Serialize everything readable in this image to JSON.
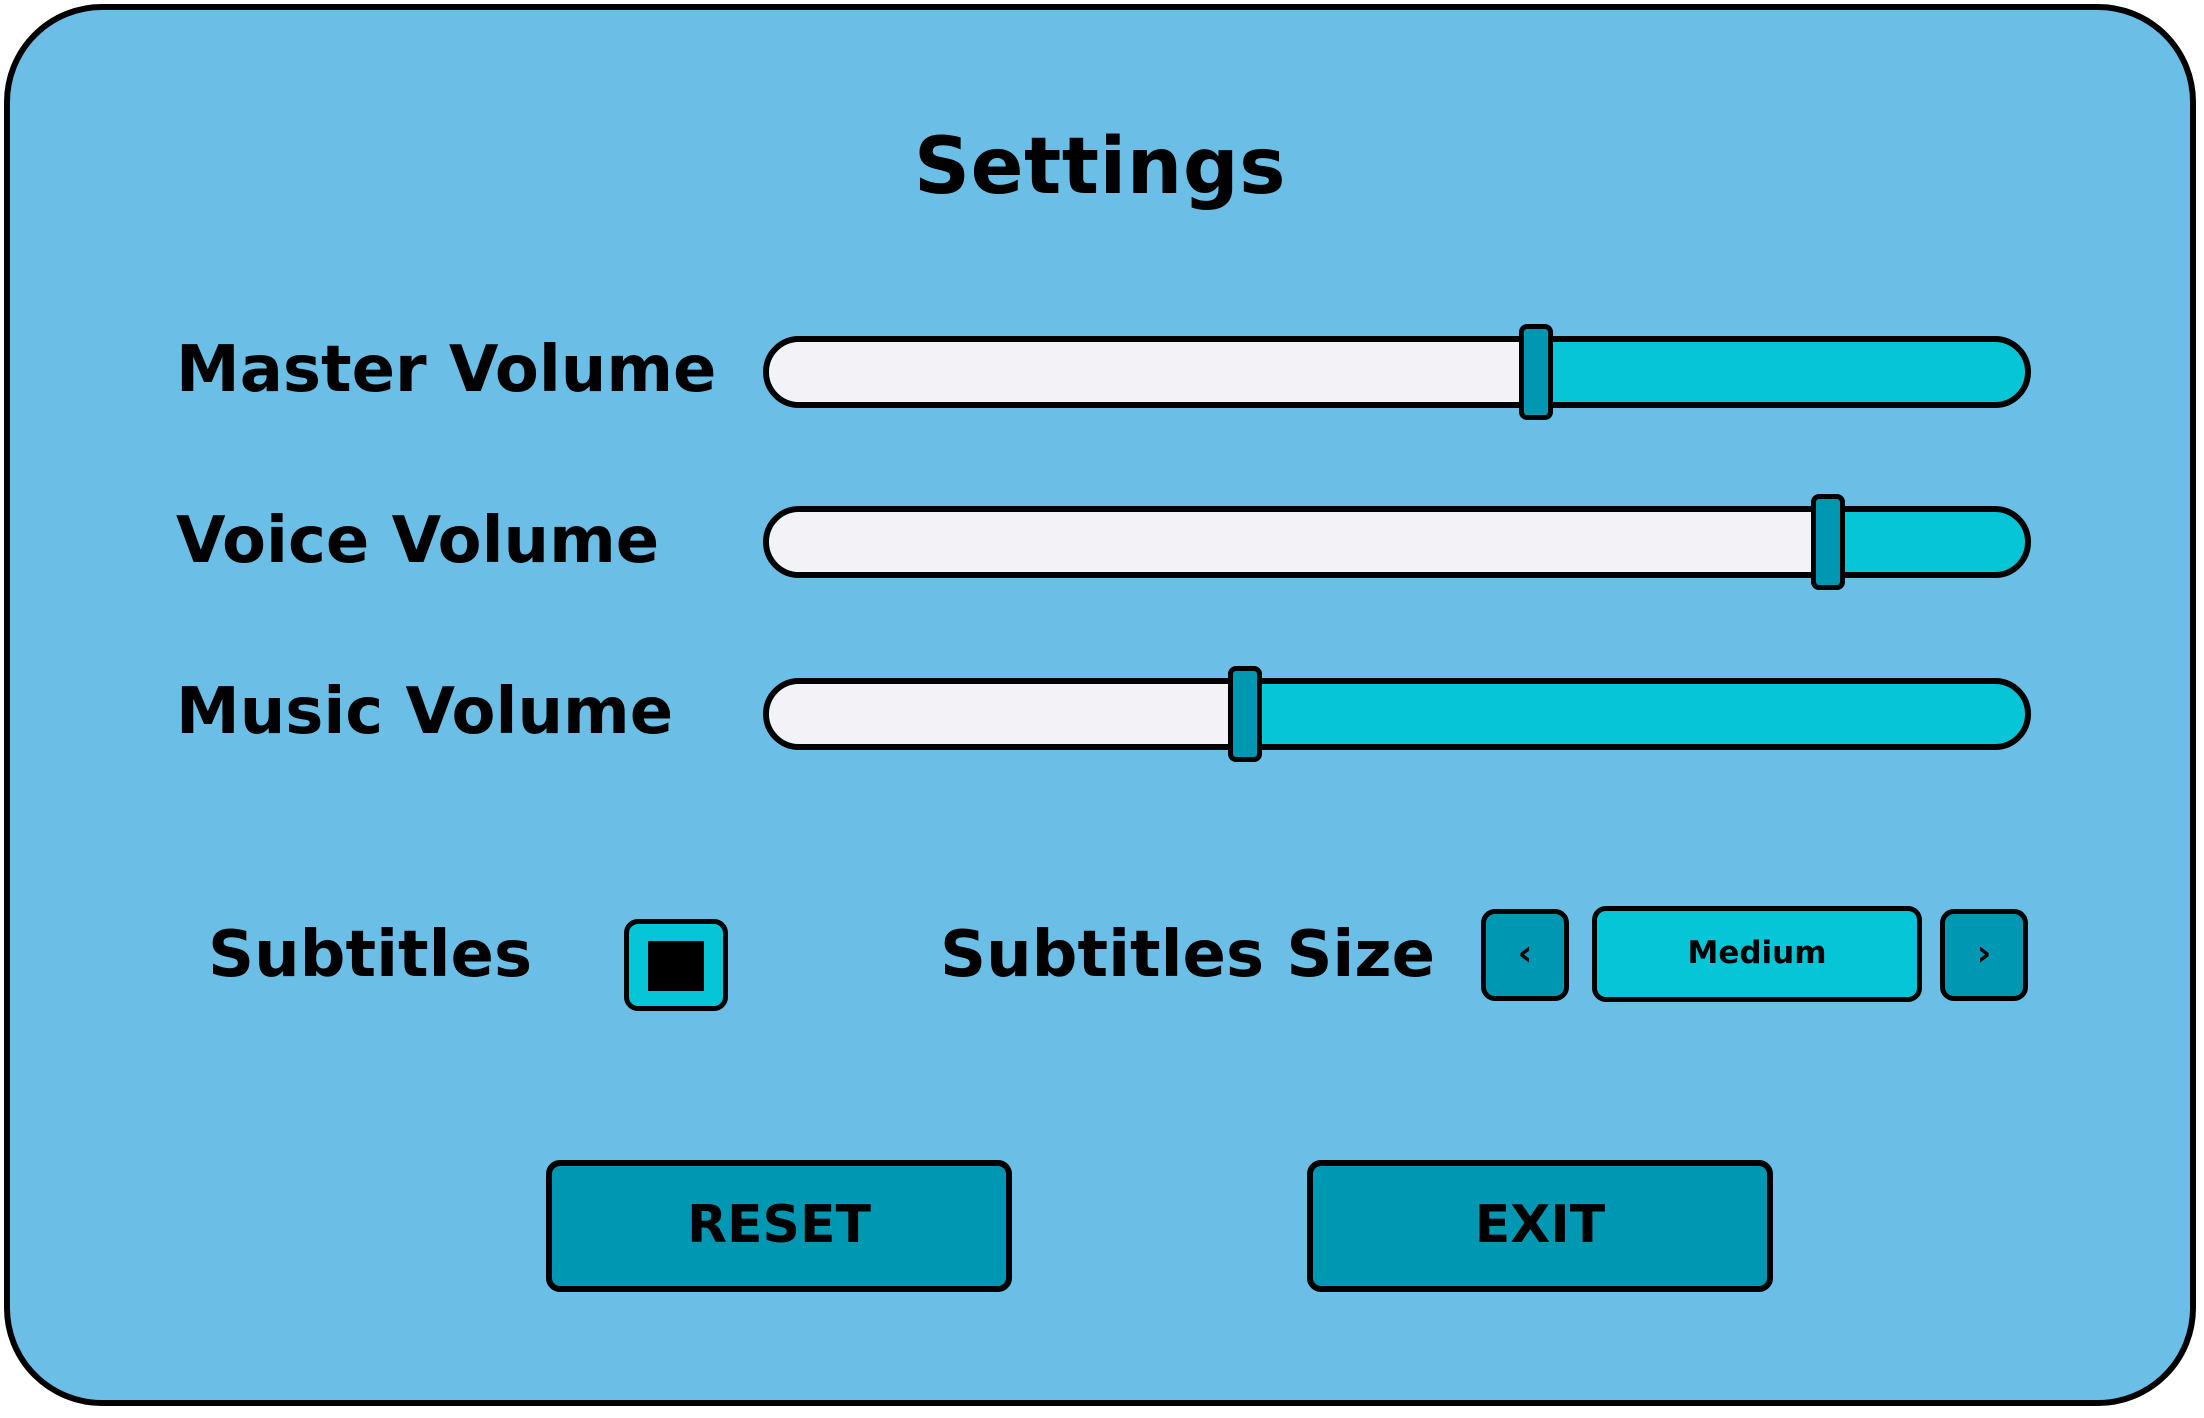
{
  "title": "Settings",
  "colors": {
    "panel_background": "#6bbfe6",
    "slider_track_filled": "#f3f3f7",
    "slider_track_empty": "#05c5d6",
    "accent_dark": "#0097b3",
    "accent_light": "#05c5d6",
    "outline": "#000000"
  },
  "sliders": [
    {
      "label": "Master Volume",
      "level": 0.61
    },
    {
      "label": "Voice Volume",
      "level": 0.84
    },
    {
      "label": "Music Volume",
      "level": 0.38
    }
  ],
  "subtitles": {
    "label": "Subtitles",
    "checked": true
  },
  "subtitles_size": {
    "label": "Subtitles Size",
    "value": "Medium",
    "prev_icon": "‹",
    "next_icon": "›"
  },
  "buttons": {
    "reset": "RESET",
    "exit": "EXIT"
  }
}
